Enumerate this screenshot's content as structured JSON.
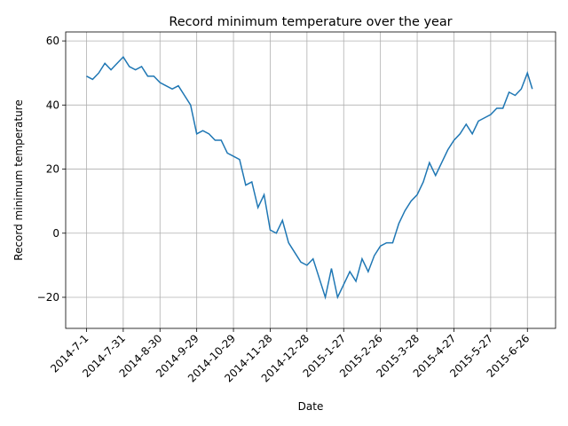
{
  "chart_data": {
    "type": "line",
    "title": "Record minimum temperature over the year",
    "x_label": "Date",
    "y_label": "Record minimum temperature",
    "x": [
      "2014-7-1",
      "2014-7-6",
      "2014-7-11",
      "2014-7-16",
      "2014-7-21",
      "2014-7-26",
      "2014-7-31",
      "2014-8-5",
      "2014-8-10",
      "2014-8-15",
      "2014-8-20",
      "2014-8-25",
      "2014-8-30",
      "2014-9-4",
      "2014-9-9",
      "2014-9-14",
      "2014-9-19",
      "2014-9-24",
      "2014-9-29",
      "2014-10-4",
      "2014-10-9",
      "2014-10-14",
      "2014-10-19",
      "2014-10-24",
      "2014-10-29",
      "2014-11-3",
      "2014-11-8",
      "2014-11-13",
      "2014-11-18",
      "2014-11-23",
      "2014-11-28",
      "2014-12-3",
      "2014-12-8",
      "2014-12-13",
      "2014-12-18",
      "2014-12-23",
      "2014-12-28",
      "2015-1-2",
      "2015-1-7",
      "2015-1-12",
      "2015-1-17",
      "2015-1-22",
      "2015-1-27",
      "2015-2-1",
      "2015-2-6",
      "2015-2-11",
      "2015-2-16",
      "2015-2-21",
      "2015-2-26",
      "2015-3-3",
      "2015-3-8",
      "2015-3-13",
      "2015-3-18",
      "2015-3-23",
      "2015-3-28",
      "2015-4-2",
      "2015-4-7",
      "2015-4-12",
      "2015-4-17",
      "2015-4-22",
      "2015-4-27",
      "2015-5-2",
      "2015-5-7",
      "2015-5-12",
      "2015-5-17",
      "2015-5-22",
      "2015-5-27",
      "2015-6-1",
      "2015-6-6",
      "2015-6-11",
      "2015-6-16",
      "2015-6-21",
      "2015-6-26",
      "2015-6-30"
    ],
    "series": [
      {
        "color": "#1f77b4",
        "values": [
          49,
          48,
          50,
          53,
          51,
          53,
          55,
          52,
          51,
          52,
          49,
          49,
          47,
          46,
          45,
          46,
          43,
          40,
          31,
          32,
          31,
          29,
          29,
          25,
          24,
          23,
          15,
          16,
          8,
          12,
          1,
          0,
          4,
          -3,
          -6,
          -9,
          -10,
          -8,
          -14,
          -20,
          -11,
          -20,
          -16,
          -12,
          -15,
          -8,
          -12,
          -7,
          -4,
          -3,
          -3,
          3,
          7,
          10,
          12,
          16,
          22,
          18,
          22,
          26,
          29,
          31,
          34,
          31,
          35,
          36,
          37,
          39,
          39,
          44,
          43,
          45,
          50,
          45
        ]
      }
    ],
    "xlim": [
      "2014-6-14",
      "2015-7-19"
    ],
    "xticks": [
      "2014-7-1",
      "2014-7-31",
      "2014-8-30",
      "2014-9-29",
      "2014-10-29",
      "2014-11-28",
      "2014-12-28",
      "2015-1-27",
      "2015-2-26",
      "2015-3-28",
      "2015-4-27",
      "2015-5-27",
      "2015-6-26"
    ],
    "ylim": [
      -29.7,
      62.8
    ],
    "yticks": [
      {
        "value": -20,
        "label": "−20"
      },
      0,
      20,
      40,
      60
    ],
    "grid": true
  }
}
